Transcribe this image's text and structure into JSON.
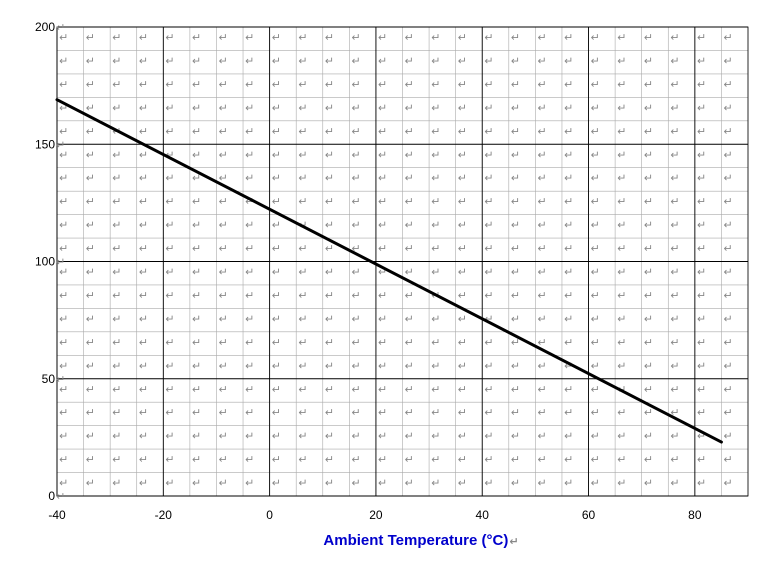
{
  "chart_data": {
    "type": "line",
    "title": "",
    "xlabel": "Ambient Temperature (°C)",
    "ylabel": "",
    "xlim": [
      -40,
      90
    ],
    "ylim": [
      0,
      200
    ],
    "x_ticks": [
      -40,
      -20,
      0,
      20,
      40,
      60,
      80
    ],
    "y_ticks": [
      0,
      50,
      100,
      150,
      200
    ],
    "x_tick_labels": [
      "-40",
      "-20",
      "0",
      "20",
      "40",
      "60",
      "80"
    ],
    "y_tick_labels": [
      "0",
      "50",
      "100",
      "150",
      "200"
    ],
    "grid": true,
    "legend": "none",
    "series": [
      {
        "x": [
          -40,
          85
        ],
        "y": [
          169,
          23
        ]
      }
    ],
    "colors": {
      "line": "#000000",
      "major_grid": "#000000",
      "minor_grid": "#aaaaaa",
      "xlabel": "#0000cc",
      "paragraph_mark": "#888888"
    },
    "paragraph_mark": "↵"
  }
}
